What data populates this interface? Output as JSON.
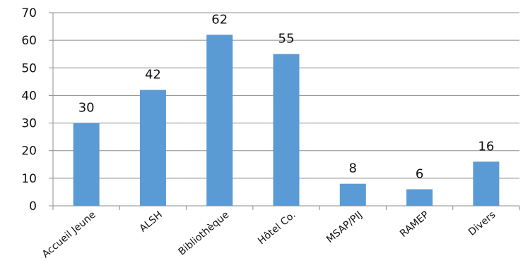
{
  "chart_data": {
    "type": "bar",
    "categories": [
      "Accueil Jeune",
      "ALSH",
      "Bibliothèque",
      "Hôtel Co.",
      "MSAP/PIJ",
      "RAMEP",
      "Divers"
    ],
    "values": [
      30,
      42,
      62,
      55,
      8,
      6,
      16
    ],
    "data_labels": [
      "30",
      "42",
      "62",
      "55",
      "8",
      "6",
      "16"
    ],
    "y_ticks": [
      0,
      10,
      20,
      30,
      40,
      50,
      60,
      70
    ],
    "y_tick_labels": [
      "0",
      "10",
      "20",
      "30",
      "40",
      "50",
      "60",
      "70"
    ],
    "ylim": [
      0,
      70
    ],
    "grid": true,
    "legend": "none",
    "title": "",
    "xlabel": "",
    "ylabel": "",
    "bar_color": "#5b9bd5"
  }
}
